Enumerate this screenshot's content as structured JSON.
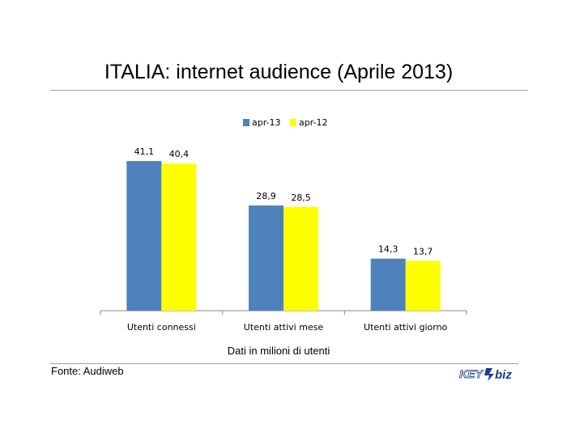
{
  "page": {
    "title": "ITALIA: internet audience (Aprile 2013)",
    "source": "Fonte: Audiweb"
  },
  "chart_data": {
    "type": "bar",
    "title": "ITALIA: internet audience (Aprile 2013)",
    "xlabel": "Dati in milioni di utenti",
    "ylabel": "",
    "categories": [
      "Utenti connessi",
      "Utenti attivi mese",
      "Utenti attivi giorno"
    ],
    "series": [
      {
        "name": "apr-13",
        "values": [
          41.1,
          28.9,
          14.3
        ],
        "labels": [
          "41,1",
          "28,9",
          "14,3"
        ],
        "color": "#4f81bd"
      },
      {
        "name": "apr-12",
        "values": [
          40.4,
          28.5,
          13.7
        ],
        "labels": [
          "40,4",
          "28,5",
          "13,7"
        ],
        "color": "#ffff00"
      }
    ],
    "ylim": [
      0,
      45
    ],
    "grid": false,
    "legend": "top-center"
  },
  "logo": {
    "text_key": "KEY",
    "text_biz": "biz",
    "color": "#1f3a93"
  }
}
